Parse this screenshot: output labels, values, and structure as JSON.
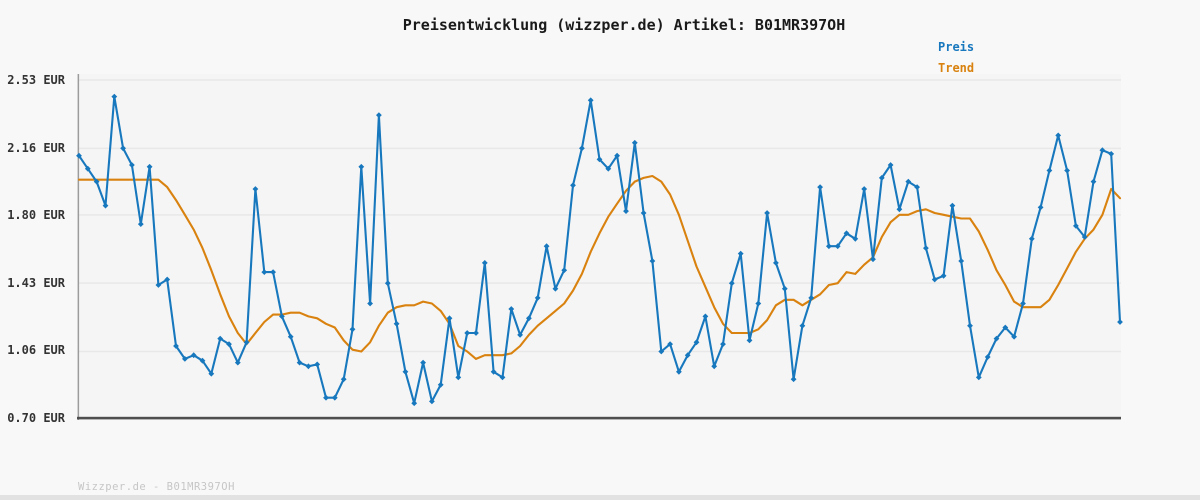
{
  "title": "Preisentwicklung (wizzper.de) Artikel: B01MR397OH",
  "legend": {
    "preis": "Preis",
    "trend": "Trend"
  },
  "watermark": "Wizzper.de - B01MR397OH",
  "y_axis": {
    "labels": [
      "2.53 EUR",
      "2.16 EUR",
      "1.80 EUR",
      "1.43 EUR",
      "1.06 EUR",
      "0.70 EUR"
    ]
  },
  "colors": {
    "preis": "#1878be",
    "trend": "#d9820f",
    "background": "#f8f8f8",
    "plot_background": "#f5f5f5",
    "gridline": "#e8e8e8",
    "axis_left": "#9c9c9c",
    "axis_bottom": "#4e4e4e",
    "title_text": "#1a1a1a",
    "tick_text": "#333333",
    "watermark_text": "#c6c6c6"
  },
  "chart_data": {
    "type": "line",
    "title": "Preisentwicklung (wizzper.de) Artikel: B01MR397OH",
    "xlabel": "",
    "ylabel": "EUR",
    "x_tick_labels": "none shown",
    "n_points": 119,
    "ylim": [
      0.7,
      2.53
    ],
    "yticks": [
      2.53,
      2.16,
      1.8,
      1.43,
      1.06,
      0.7
    ],
    "grid": true,
    "legend_position": "top-right",
    "series": [
      {
        "name": "Preis",
        "color": "#1878be",
        "marker": "diamond",
        "values": [
          2.12,
          2.05,
          1.98,
          1.85,
          2.44,
          2.16,
          2.07,
          1.75,
          2.06,
          1.42,
          1.45,
          1.09,
          1.02,
          1.04,
          1.01,
          0.94,
          1.13,
          1.1,
          1.0,
          1.11,
          1.94,
          1.49,
          1.49,
          1.25,
          1.14,
          1.0,
          0.98,
          0.99,
          0.81,
          0.81,
          0.91,
          1.18,
          2.06,
          1.32,
          2.34,
          1.43,
          1.21,
          0.95,
          0.78,
          1.0,
          0.79,
          0.88,
          1.24,
          0.92,
          1.16,
          1.16,
          1.54,
          0.95,
          0.92,
          1.29,
          1.15,
          1.24,
          1.35,
          1.63,
          1.4,
          1.5,
          1.96,
          2.16,
          2.42,
          2.1,
          2.05,
          2.12,
          1.82,
          2.19,
          1.81,
          1.55,
          1.06,
          1.1,
          0.95,
          1.04,
          1.11,
          1.25,
          0.98,
          1.1,
          1.43,
          1.59,
          1.12,
          1.32,
          1.81,
          1.54,
          1.4,
          0.91,
          1.2,
          1.35,
          1.95,
          1.63,
          1.63,
          1.7,
          1.67,
          1.94,
          1.56,
          2.0,
          2.07,
          1.83,
          1.98,
          1.95,
          1.62,
          1.45,
          1.47,
          1.85,
          1.55,
          1.2,
          0.92,
          1.03,
          1.13,
          1.19,
          1.14,
          1.32,
          1.67,
          1.84,
          2.04,
          2.23,
          2.04,
          1.74,
          1.68,
          1.98,
          2.15,
          2.13,
          1.22
        ]
      },
      {
        "name": "Trend",
        "color": "#d9820f",
        "marker": "none",
        "values": [
          1.99,
          1.99,
          1.99,
          1.99,
          1.99,
          1.99,
          1.99,
          1.99,
          1.99,
          1.99,
          1.95,
          1.88,
          1.8,
          1.72,
          1.62,
          1.5,
          1.37,
          1.25,
          1.16,
          1.1,
          1.16,
          1.22,
          1.26,
          1.26,
          1.27,
          1.27,
          1.25,
          1.24,
          1.21,
          1.19,
          1.12,
          1.07,
          1.06,
          1.11,
          1.2,
          1.27,
          1.3,
          1.31,
          1.31,
          1.33,
          1.32,
          1.28,
          1.21,
          1.09,
          1.06,
          1.02,
          1.04,
          1.04,
          1.04,
          1.05,
          1.09,
          1.15,
          1.2,
          1.24,
          1.28,
          1.32,
          1.39,
          1.48,
          1.6,
          1.7,
          1.79,
          1.86,
          1.93,
          1.98,
          2.0,
          2.01,
          1.98,
          1.91,
          1.8,
          1.66,
          1.52,
          1.41,
          1.3,
          1.21,
          1.16,
          1.16,
          1.16,
          1.18,
          1.23,
          1.31,
          1.34,
          1.34,
          1.31,
          1.34,
          1.37,
          1.42,
          1.43,
          1.49,
          1.48,
          1.53,
          1.57,
          1.68,
          1.76,
          1.8,
          1.8,
          1.82,
          1.83,
          1.81,
          1.8,
          1.79,
          1.78,
          1.78,
          1.71,
          1.61,
          1.5,
          1.42,
          1.33,
          1.3,
          1.3,
          1.3,
          1.34,
          1.42,
          1.51,
          1.6,
          1.67,
          1.72,
          1.8,
          1.94,
          1.89
        ]
      }
    ]
  }
}
